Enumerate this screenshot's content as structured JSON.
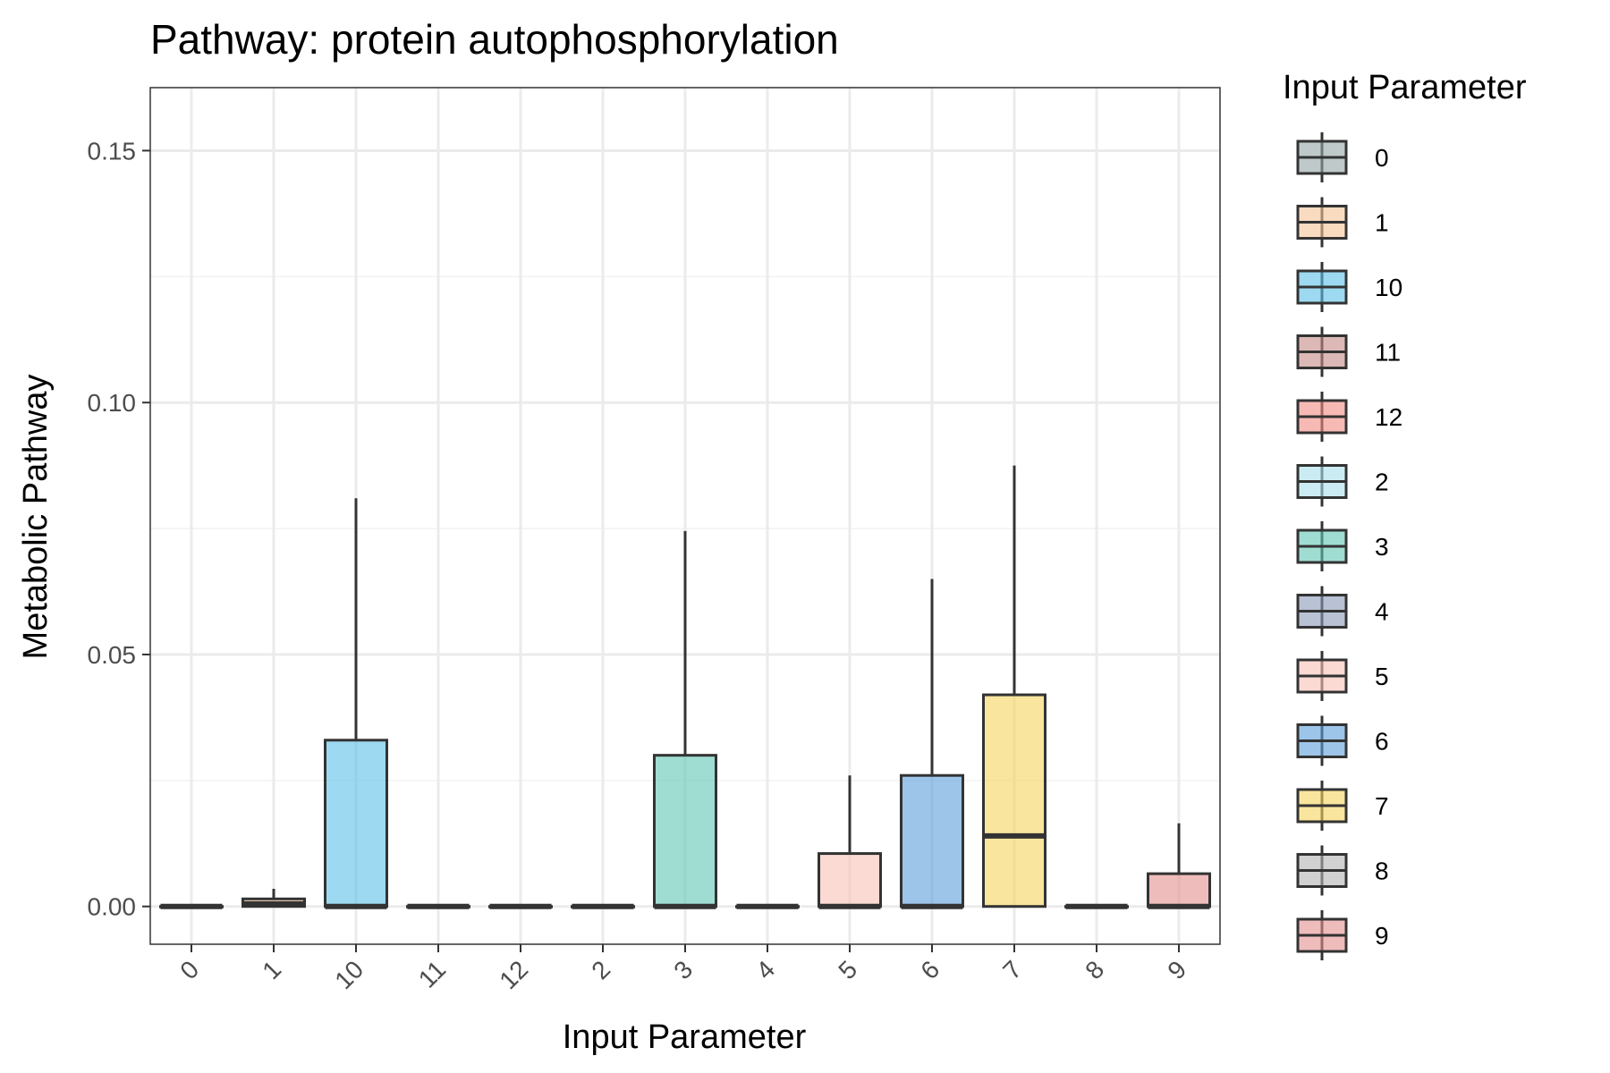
{
  "chart_data": {
    "type": "boxplot",
    "title": "Pathway: protein autophosphorylation",
    "xlabel": "Input Parameter",
    "ylabel": "Metabolic Pathway",
    "categories": [
      "0",
      "1",
      "10",
      "11",
      "12",
      "2",
      "3",
      "4",
      "5",
      "6",
      "7",
      "8",
      "9"
    ],
    "ylim": [
      -0.0075,
      0.1625
    ],
    "yticks": [
      0.0,
      0.05,
      0.1,
      0.15
    ],
    "ytick_labels": [
      "0.00",
      "0.05",
      "0.10",
      "0.15"
    ],
    "grid": true,
    "legend": {
      "title": "Input Parameter",
      "position": "right",
      "entries": [
        "0",
        "1",
        "10",
        "11",
        "12",
        "2",
        "3",
        "4",
        "5",
        "6",
        "7",
        "8",
        "9"
      ]
    },
    "boxes": [
      {
        "category": "0",
        "min": 0.0,
        "q1": 0.0,
        "median": 0.0,
        "q3": 0.0,
        "max": 0.0,
        "color": "#95a5a6"
      },
      {
        "category": "1",
        "min": 0.0,
        "q1": 0.0,
        "median": 0.0005,
        "q3": 0.0015,
        "max": 0.0035,
        "color": "#f5c396"
      },
      {
        "category": "10",
        "min": 0.0,
        "q1": 0.0,
        "median": 0.0,
        "q3": 0.033,
        "max": 0.081,
        "color": "#5bc0e6"
      },
      {
        "category": "11",
        "min": 0.0,
        "q1": 0.0,
        "median": 0.0,
        "q3": 0.0,
        "max": 0.0,
        "color": "#c48b86"
      },
      {
        "category": "12",
        "min": 0.0,
        "q1": 0.0,
        "median": 0.0,
        "q3": 0.0,
        "max": 0.0,
        "color": "#f28b82"
      },
      {
        "category": "2",
        "min": 0.0,
        "q1": 0.0,
        "median": 0.0,
        "q3": 0.0,
        "max": 0.0,
        "color": "#a8dfea"
      },
      {
        "category": "3",
        "min": 0.0,
        "q1": 0.0,
        "median": 0.0,
        "q3": 0.03,
        "max": 0.0745,
        "color": "#5fc6b4"
      },
      {
        "category": "4",
        "min": 0.0,
        "q1": 0.0,
        "median": 0.0,
        "q3": 0.0,
        "max": 0.0,
        "color": "#8b98b8"
      },
      {
        "category": "5",
        "min": 0.0,
        "q1": 0.0,
        "median": 0.0,
        "q3": 0.0105,
        "max": 0.026,
        "color": "#f6c2b6"
      },
      {
        "category": "6",
        "min": 0.0,
        "q1": 0.0,
        "median": 0.0,
        "q3": 0.026,
        "max": 0.065,
        "color": "#5b9fdb"
      },
      {
        "category": "7",
        "min": 0.0,
        "q1": 0.0,
        "median": 0.014,
        "q3": 0.042,
        "max": 0.0875,
        "color": "#f5d35c"
      },
      {
        "category": "8",
        "min": 0.0,
        "q1": 0.0,
        "median": 0.0,
        "q3": 0.0,
        "max": 0.0,
        "color": "#b3b3b3"
      },
      {
        "category": "9",
        "min": 0.0,
        "q1": 0.0,
        "median": 0.0,
        "q3": 0.0065,
        "max": 0.0165,
        "color": "#e58f8f"
      }
    ]
  }
}
